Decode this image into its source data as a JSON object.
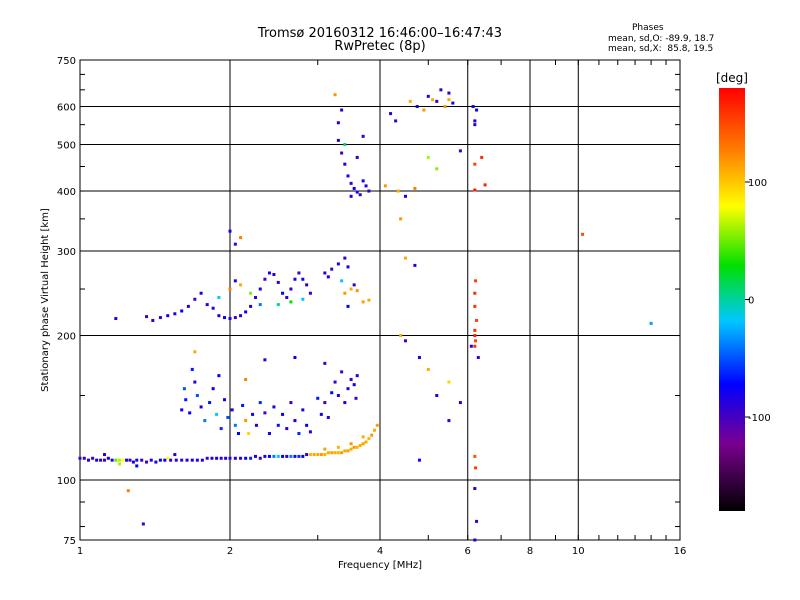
{
  "header": {
    "title_line1": "Tromsø 20160312 16:46:00–16:47:43",
    "title_line2": "RwPretec (8p)"
  },
  "phase_box": {
    "heading": "Phases",
    "line_o": "mean, sd,O: -89.9, 18.7",
    "line_x": "mean, sd,X:  85.8, 19.5"
  },
  "colorbar": {
    "label": "[deg]",
    "ticks": [
      {
        "value": 100,
        "label": "100"
      },
      {
        "value": 0,
        "label": "0"
      },
      {
        "value": -100,
        "label": "-100"
      }
    ],
    "range": [
      -180,
      180
    ]
  },
  "chart_data": {
    "type": "scatter",
    "title": "Tromsø 20160312 16:46:00–16:47:43",
    "subtitle": "RwPretec (8p)",
    "xlabel": "Frequency [MHz]",
    "ylabel": "Stationary phase Virtual Height [km]",
    "xscale": "log",
    "yscale": "log",
    "xlim": [
      1,
      16
    ],
    "ylim": [
      75,
      750
    ],
    "x_ticks": [
      {
        "value": 1,
        "label": "1"
      },
      {
        "value": 2,
        "label": "2"
      },
      {
        "value": 4,
        "label": "4"
      },
      {
        "value": 6,
        "label": "6"
      },
      {
        "value": 8,
        "label": "8"
      },
      {
        "value": 10,
        "label": "10"
      },
      {
        "value": 16,
        "label": "16"
      }
    ],
    "y_ticks": [
      {
        "value": 75,
        "label": "75"
      },
      {
        "value": 100,
        "label": "100"
      },
      {
        "value": 200,
        "label": "200"
      },
      {
        "value": 300,
        "label": "300"
      },
      {
        "value": 400,
        "label": "400"
      },
      {
        "value": 500,
        "label": "500"
      },
      {
        "value": 600,
        "label": "600"
      },
      {
        "value": 750,
        "label": "750"
      }
    ],
    "grid_x": [
      2,
      4,
      6,
      8,
      10
    ],
    "grid_y": [
      100,
      200,
      300,
      400,
      500,
      600
    ],
    "color_label": "Phase [deg]",
    "points": [
      [
        1.0,
        111,
        -110
      ],
      [
        1.02,
        111,
        -105
      ],
      [
        1.04,
        110,
        -100
      ],
      [
        1.06,
        111,
        -110
      ],
      [
        1.08,
        110,
        -95
      ],
      [
        1.1,
        110,
        -105
      ],
      [
        1.12,
        110,
        -112
      ],
      [
        1.14,
        111,
        -90
      ],
      [
        1.16,
        110,
        -100
      ],
      [
        1.18,
        110,
        20
      ],
      [
        1.2,
        110,
        40
      ],
      [
        1.22,
        110,
        60
      ],
      [
        1.24,
        110,
        -100
      ],
      [
        1.26,
        110,
        -110
      ],
      [
        1.28,
        109,
        -95
      ],
      [
        1.3,
        110,
        -100
      ],
      [
        1.33,
        110,
        -105
      ],
      [
        1.36,
        109,
        -110
      ],
      [
        1.39,
        110,
        -100
      ],
      [
        1.42,
        109,
        -100
      ],
      [
        1.45,
        110,
        -95
      ],
      [
        1.48,
        110,
        -90
      ],
      [
        1.52,
        110,
        -105
      ],
      [
        1.56,
        110,
        -100
      ],
      [
        1.6,
        110,
        -110
      ],
      [
        1.64,
        110,
        -100
      ],
      [
        1.68,
        110,
        -95
      ],
      [
        1.72,
        110,
        -105
      ],
      [
        1.76,
        110,
        -100
      ],
      [
        1.8,
        111,
        -110
      ],
      [
        1.84,
        111,
        -100
      ],
      [
        1.88,
        111,
        -95
      ],
      [
        1.92,
        111,
        -105
      ],
      [
        1.96,
        111,
        -100
      ],
      [
        2.0,
        111,
        -110
      ],
      [
        2.05,
        111,
        -100
      ],
      [
        2.1,
        111,
        -105
      ],
      [
        2.15,
        111,
        -95
      ],
      [
        2.2,
        111,
        -80
      ],
      [
        2.25,
        112,
        -100
      ],
      [
        2.3,
        111,
        -110
      ],
      [
        2.35,
        112,
        -100
      ],
      [
        2.4,
        112,
        -90
      ],
      [
        2.45,
        112,
        -60
      ],
      [
        2.5,
        112,
        -40
      ],
      [
        2.55,
        112,
        -90
      ],
      [
        2.6,
        112,
        -100
      ],
      [
        2.65,
        112,
        -60
      ],
      [
        2.7,
        112,
        -100
      ],
      [
        2.75,
        112,
        -80
      ],
      [
        2.8,
        112,
        -90
      ],
      [
        2.85,
        113,
        -100
      ],
      [
        2.9,
        113,
        95
      ],
      [
        2.95,
        113,
        105
      ],
      [
        3.0,
        113,
        100
      ],
      [
        3.05,
        113,
        110
      ],
      [
        3.1,
        113,
        95
      ],
      [
        3.15,
        114,
        100
      ],
      [
        3.2,
        114,
        105
      ],
      [
        3.25,
        114,
        100
      ],
      [
        3.3,
        114,
        95
      ],
      [
        3.35,
        114,
        110
      ],
      [
        3.4,
        115,
        100
      ],
      [
        3.45,
        115,
        105
      ],
      [
        3.5,
        116,
        100
      ],
      [
        3.55,
        117,
        110
      ],
      [
        3.6,
        117,
        95
      ],
      [
        3.65,
        118,
        100
      ],
      [
        3.7,
        119,
        105
      ],
      [
        3.75,
        120,
        100
      ],
      [
        3.8,
        122,
        95
      ],
      [
        3.85,
        124,
        110
      ],
      [
        3.9,
        127,
        100
      ],
      [
        3.95,
        130,
        105
      ],
      [
        3.7,
        123,
        100
      ],
      [
        3.5,
        119,
        110
      ],
      [
        3.3,
        117,
        95
      ],
      [
        3.1,
        116,
        105
      ],
      [
        1.12,
        113,
        -100
      ],
      [
        1.2,
        108,
        40
      ],
      [
        1.3,
        107,
        -90
      ],
      [
        1.25,
        95,
        120
      ],
      [
        1.34,
        81,
        -110
      ],
      [
        1.5,
        111,
        60
      ],
      [
        1.55,
        113,
        -100
      ],
      [
        1.6,
        140,
        -95
      ],
      [
        1.63,
        147,
        -85
      ],
      [
        1.66,
        138,
        -90
      ],
      [
        1.7,
        160,
        -100
      ],
      [
        1.72,
        150,
        -70
      ],
      [
        1.75,
        142,
        -95
      ],
      [
        1.78,
        133,
        -60
      ],
      [
        1.82,
        145,
        -85
      ],
      [
        1.85,
        155,
        -90
      ],
      [
        1.88,
        137,
        -40
      ],
      [
        1.92,
        128,
        -80
      ],
      [
        1.95,
        147,
        -95
      ],
      [
        1.98,
        135,
        -70
      ],
      [
        2.02,
        140,
        -100
      ],
      [
        2.05,
        130,
        -60
      ],
      [
        2.08,
        125,
        -90
      ],
      [
        2.12,
        143,
        -85
      ],
      [
        2.15,
        133,
        110
      ],
      [
        2.18,
        125,
        80
      ],
      [
        2.22,
        137,
        -95
      ],
      [
        2.26,
        130,
        -100
      ],
      [
        2.3,
        145,
        -80
      ],
      [
        2.35,
        138,
        -110
      ],
      [
        2.4,
        125,
        -95
      ],
      [
        2.45,
        142,
        -100
      ],
      [
        2.5,
        130,
        -85
      ],
      [
        2.55,
        137,
        -90
      ],
      [
        2.6,
        128,
        -100
      ],
      [
        2.65,
        145,
        -110
      ],
      [
        2.7,
        133,
        -95
      ],
      [
        2.75,
        125,
        -80
      ],
      [
        2.8,
        140,
        -100
      ],
      [
        2.85,
        130,
        -90
      ],
      [
        2.9,
        126,
        -100
      ],
      [
        3.0,
        148,
        -85
      ],
      [
        3.05,
        137,
        -95
      ],
      [
        3.1,
        145,
        -110
      ],
      [
        3.15,
        135,
        -100
      ],
      [
        3.2,
        152,
        -90
      ],
      [
        3.25,
        160,
        -105
      ],
      [
        3.3,
        150,
        -100
      ],
      [
        3.35,
        168,
        -110
      ],
      [
        3.4,
        145,
        -95
      ],
      [
        3.45,
        155,
        -100
      ],
      [
        3.5,
        162,
        -105
      ],
      [
        3.55,
        158,
        -90
      ],
      [
        3.6,
        165,
        -100
      ],
      [
        3.58,
        148,
        -110
      ],
      [
        1.62,
        155,
        -70
      ],
      [
        1.68,
        170,
        -85
      ],
      [
        1.9,
        165,
        -90
      ],
      [
        2.15,
        162,
        120
      ],
      [
        2.35,
        178,
        -100
      ],
      [
        2.7,
        180,
        -95
      ],
      [
        3.1,
        175,
        -110
      ],
      [
        1.7,
        185,
        100
      ],
      [
        1.18,
        217,
        -100
      ],
      [
        1.36,
        219,
        -110
      ],
      [
        1.4,
        215,
        -100
      ],
      [
        1.45,
        218,
        -105
      ],
      [
        1.5,
        220,
        -95
      ],
      [
        1.55,
        222,
        -100
      ],
      [
        1.6,
        225,
        -90
      ],
      [
        1.65,
        230,
        -100
      ],
      [
        1.7,
        238,
        -110
      ],
      [
        1.75,
        245,
        -95
      ],
      [
        1.8,
        232,
        -100
      ],
      [
        1.85,
        228,
        -105
      ],
      [
        1.9,
        220,
        -100
      ],
      [
        1.95,
        218,
        -90
      ],
      [
        2.0,
        217,
        -100
      ],
      [
        2.05,
        218,
        -110
      ],
      [
        2.1,
        220,
        -100
      ],
      [
        2.15,
        224,
        -95
      ],
      [
        2.2,
        230,
        -100
      ],
      [
        2.25,
        240,
        -105
      ],
      [
        2.3,
        250,
        -100
      ],
      [
        2.35,
        262,
        -110
      ],
      [
        2.4,
        270,
        -95
      ],
      [
        2.45,
        268,
        -100
      ],
      [
        2.5,
        258,
        -105
      ],
      [
        2.55,
        245,
        -90
      ],
      [
        2.6,
        240,
        -100
      ],
      [
        2.65,
        250,
        -105
      ],
      [
        2.7,
        262,
        -100
      ],
      [
        2.75,
        270,
        -110
      ],
      [
        2.8,
        262,
        -95
      ],
      [
        2.85,
        255,
        -100
      ],
      [
        2.9,
        245,
        -105
      ],
      [
        1.9,
        240,
        -40
      ],
      [
        2.0,
        250,
        120
      ],
      [
        2.1,
        255,
        100
      ],
      [
        2.05,
        260,
        -100
      ],
      [
        2.2,
        245,
        30
      ],
      [
        2.5,
        232,
        -20
      ],
      [
        2.65,
        235,
        0
      ],
      [
        2.8,
        238,
        -40
      ],
      [
        2.3,
        232,
        -60
      ],
      [
        3.1,
        270,
        -100
      ],
      [
        3.15,
        265,
        -95
      ],
      [
        3.2,
        275,
        -110
      ],
      [
        3.3,
        282,
        -100
      ],
      [
        3.4,
        290,
        -105
      ],
      [
        3.45,
        278,
        -95
      ],
      [
        3.55,
        255,
        -100
      ],
      [
        3.35,
        260,
        -40
      ],
      [
        3.4,
        245,
        110
      ],
      [
        3.5,
        250,
        100
      ],
      [
        3.6,
        248,
        110
      ],
      [
        3.7,
        235,
        105
      ],
      [
        3.8,
        237,
        100
      ],
      [
        3.45,
        230,
        -90
      ],
      [
        2.05,
        310,
        -110
      ],
      [
        2.1,
        320,
        120
      ],
      [
        2.0,
        330,
        -100
      ],
      [
        3.3,
        510,
        -100
      ],
      [
        3.35,
        480,
        -110
      ],
      [
        3.4,
        455,
        -95
      ],
      [
        3.45,
        430,
        -100
      ],
      [
        3.5,
        415,
        -105
      ],
      [
        3.55,
        405,
        -90
      ],
      [
        3.6,
        398,
        -100
      ],
      [
        3.65,
        393,
        -110
      ],
      [
        3.7,
        420,
        -95
      ],
      [
        3.75,
        410,
        -100
      ],
      [
        3.8,
        400,
        -105
      ],
      [
        3.5,
        390,
        -100
      ],
      [
        3.6,
        470,
        -100
      ],
      [
        3.3,
        555,
        -95
      ],
      [
        3.35,
        590,
        -100
      ],
      [
        3.25,
        635,
        110
      ],
      [
        3.7,
        520,
        -105
      ],
      [
        3.4,
        500,
        -20
      ],
      [
        4.2,
        580,
        -100
      ],
      [
        4.3,
        560,
        -105
      ],
      [
        4.1,
        410,
        110
      ],
      [
        4.35,
        400,
        100
      ],
      [
        4.5,
        390,
        -100
      ],
      [
        4.7,
        405,
        120
      ],
      [
        4.6,
        615,
        100
      ],
      [
        4.75,
        600,
        -100
      ],
      [
        4.9,
        590,
        110
      ],
      [
        5.0,
        630,
        -100
      ],
      [
        5.1,
        620,
        100
      ],
      [
        5.2,
        615,
        -105
      ],
      [
        5.4,
        600,
        110
      ],
      [
        5.5,
        620,
        100
      ],
      [
        5.6,
        610,
        -100
      ],
      [
        5.3,
        650,
        -105
      ],
      [
        5.5,
        640,
        -100
      ],
      [
        5.0,
        470,
        40
      ],
      [
        5.2,
        445,
        30
      ],
      [
        5.8,
        485,
        -110
      ],
      [
        4.4,
        350,
        110
      ],
      [
        4.5,
        290,
        100
      ],
      [
        4.7,
        280,
        -100
      ],
      [
        4.4,
        200,
        100
      ],
      [
        4.5,
        195,
        -110
      ],
      [
        4.8,
        180,
        -100
      ],
      [
        5.0,
        170,
        100
      ],
      [
        5.2,
        150,
        -100
      ],
      [
        5.5,
        160,
        80
      ],
      [
        4.8,
        110,
        -100
      ],
      [
        5.8,
        145,
        -100
      ],
      [
        5.5,
        133,
        -105
      ],
      [
        6.2,
        550,
        -100
      ],
      [
        6.2,
        560,
        -95
      ],
      [
        6.15,
        600,
        -100
      ],
      [
        6.25,
        590,
        -90
      ],
      [
        6.2,
        455,
        150
      ],
      [
        6.4,
        470,
        160
      ],
      [
        6.5,
        412,
        165
      ],
      [
        6.2,
        402,
        170
      ],
      [
        6.22,
        260,
        150
      ],
      [
        6.2,
        245,
        160
      ],
      [
        6.2,
        230,
        155
      ],
      [
        6.25,
        215,
        150
      ],
      [
        6.2,
        205,
        160
      ],
      [
        6.2,
        200,
        165
      ],
      [
        6.22,
        195,
        150
      ],
      [
        6.2,
        190,
        160
      ],
      [
        6.3,
        180,
        -110
      ],
      [
        6.2,
        112,
        140
      ],
      [
        6.22,
        106,
        150
      ],
      [
        6.2,
        96,
        -100
      ],
      [
        6.25,
        82,
        -105
      ],
      [
        6.2,
        75,
        -100
      ],
      [
        6.1,
        190,
        -100
      ],
      [
        10.2,
        325,
        145
      ],
      [
        14.0,
        212,
        -50
      ]
    ]
  }
}
